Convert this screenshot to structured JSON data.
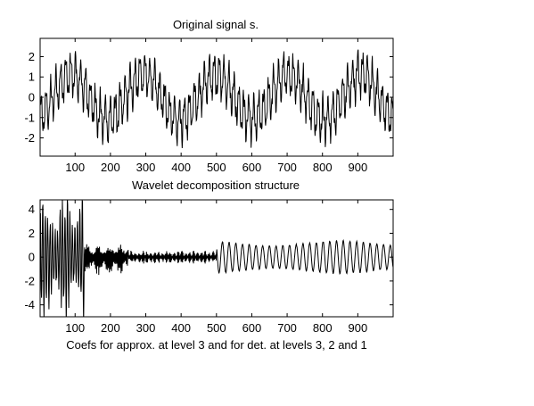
{
  "figure": {
    "background": "#ffffff",
    "line_color": "#000000"
  },
  "chart_data": [
    {
      "type": "line",
      "title": "Original signal s.",
      "xlabel": "Wavelet decomposition structure",
      "ylabel": "",
      "xlim": [
        1,
        1000
      ],
      "ylim": [
        -2.9,
        2.9
      ],
      "xticks": [
        100,
        200,
        300,
        400,
        500,
        600,
        700,
        800,
        900
      ],
      "yticks": [
        -2,
        -1,
        0,
        1,
        2
      ],
      "grid": false,
      "series": [
        {
          "description": "noisy oscillating signal, length 1000",
          "model": "sum of sines plus bounded noise",
          "components": [
            {
              "amplitude": 1.1,
              "period": 205,
              "phase": -1.15
            },
            {
              "amplitude": 0.9,
              "period": 14,
              "phase": 0.0
            },
            {
              "amplitude": 0.35,
              "period": 5,
              "phase": 0.6
            }
          ],
          "noise_amplitude": 0.25,
          "x_start": 1,
          "x_end": 1000
        }
      ]
    },
    {
      "type": "line",
      "title": "",
      "xlabel": "Coefs for approx. at level 3 and for det. at levels 3, 2 and 1",
      "ylabel": "",
      "xlim": [
        1,
        1000
      ],
      "ylim": [
        -5.0,
        4.8
      ],
      "xticks": [
        100,
        200,
        300,
        400,
        500,
        600,
        700,
        800,
        900
      ],
      "yticks": [
        -4,
        -2,
        0,
        2,
        4
      ],
      "grid": false,
      "series": [
        {
          "description": "concatenated wavelet coefficients [cA3, cD3, cD2, cD1]",
          "segments": [
            {
              "name": "cA3",
              "x_range": [
                1,
                125
              ],
              "amplitude": 4.4,
              "period": 7
            },
            {
              "name": "cD3",
              "x_range": [
                126,
                250
              ],
              "amplitude": 1.2,
              "period": 3
            },
            {
              "name": "cD2",
              "x_range": [
                251,
                500
              ],
              "amplitude": 0.45,
              "period": 2.2
            },
            {
              "name": "cD1",
              "x_range": [
                501,
                1000
              ],
              "amplitude": 1.35,
              "period": 19
            }
          ]
        }
      ]
    }
  ]
}
